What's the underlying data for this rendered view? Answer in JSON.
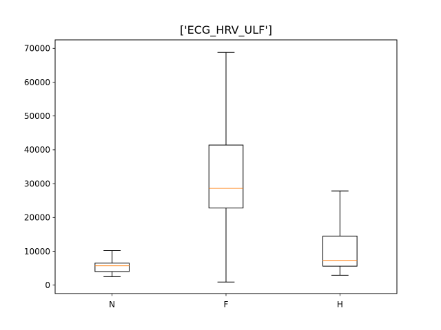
{
  "chart_data": {
    "type": "box",
    "title": "['ECG_HRV_ULF']",
    "xlabel": "",
    "ylabel": "",
    "categories": [
      "N",
      "F",
      "H"
    ],
    "ylim": [
      -2500,
      72500
    ],
    "yticks": [
      0,
      10000,
      20000,
      30000,
      40000,
      50000,
      60000,
      70000
    ],
    "boxes": [
      {
        "category": "N",
        "whisker_low": 2500,
        "q1": 4000,
        "median": 5700,
        "q3": 6500,
        "whisker_high": 10200
      },
      {
        "category": "F",
        "whisker_low": 900,
        "q1": 22800,
        "median": 28600,
        "q3": 41400,
        "whisker_high": 68800
      },
      {
        "category": "H",
        "whisker_low": 2900,
        "q1": 5600,
        "median": 7300,
        "q3": 14500,
        "whisker_high": 27800
      }
    ],
    "colors": {
      "box": "#000000",
      "median": "#ff7f0e"
    },
    "grid": false,
    "legend": "none"
  }
}
